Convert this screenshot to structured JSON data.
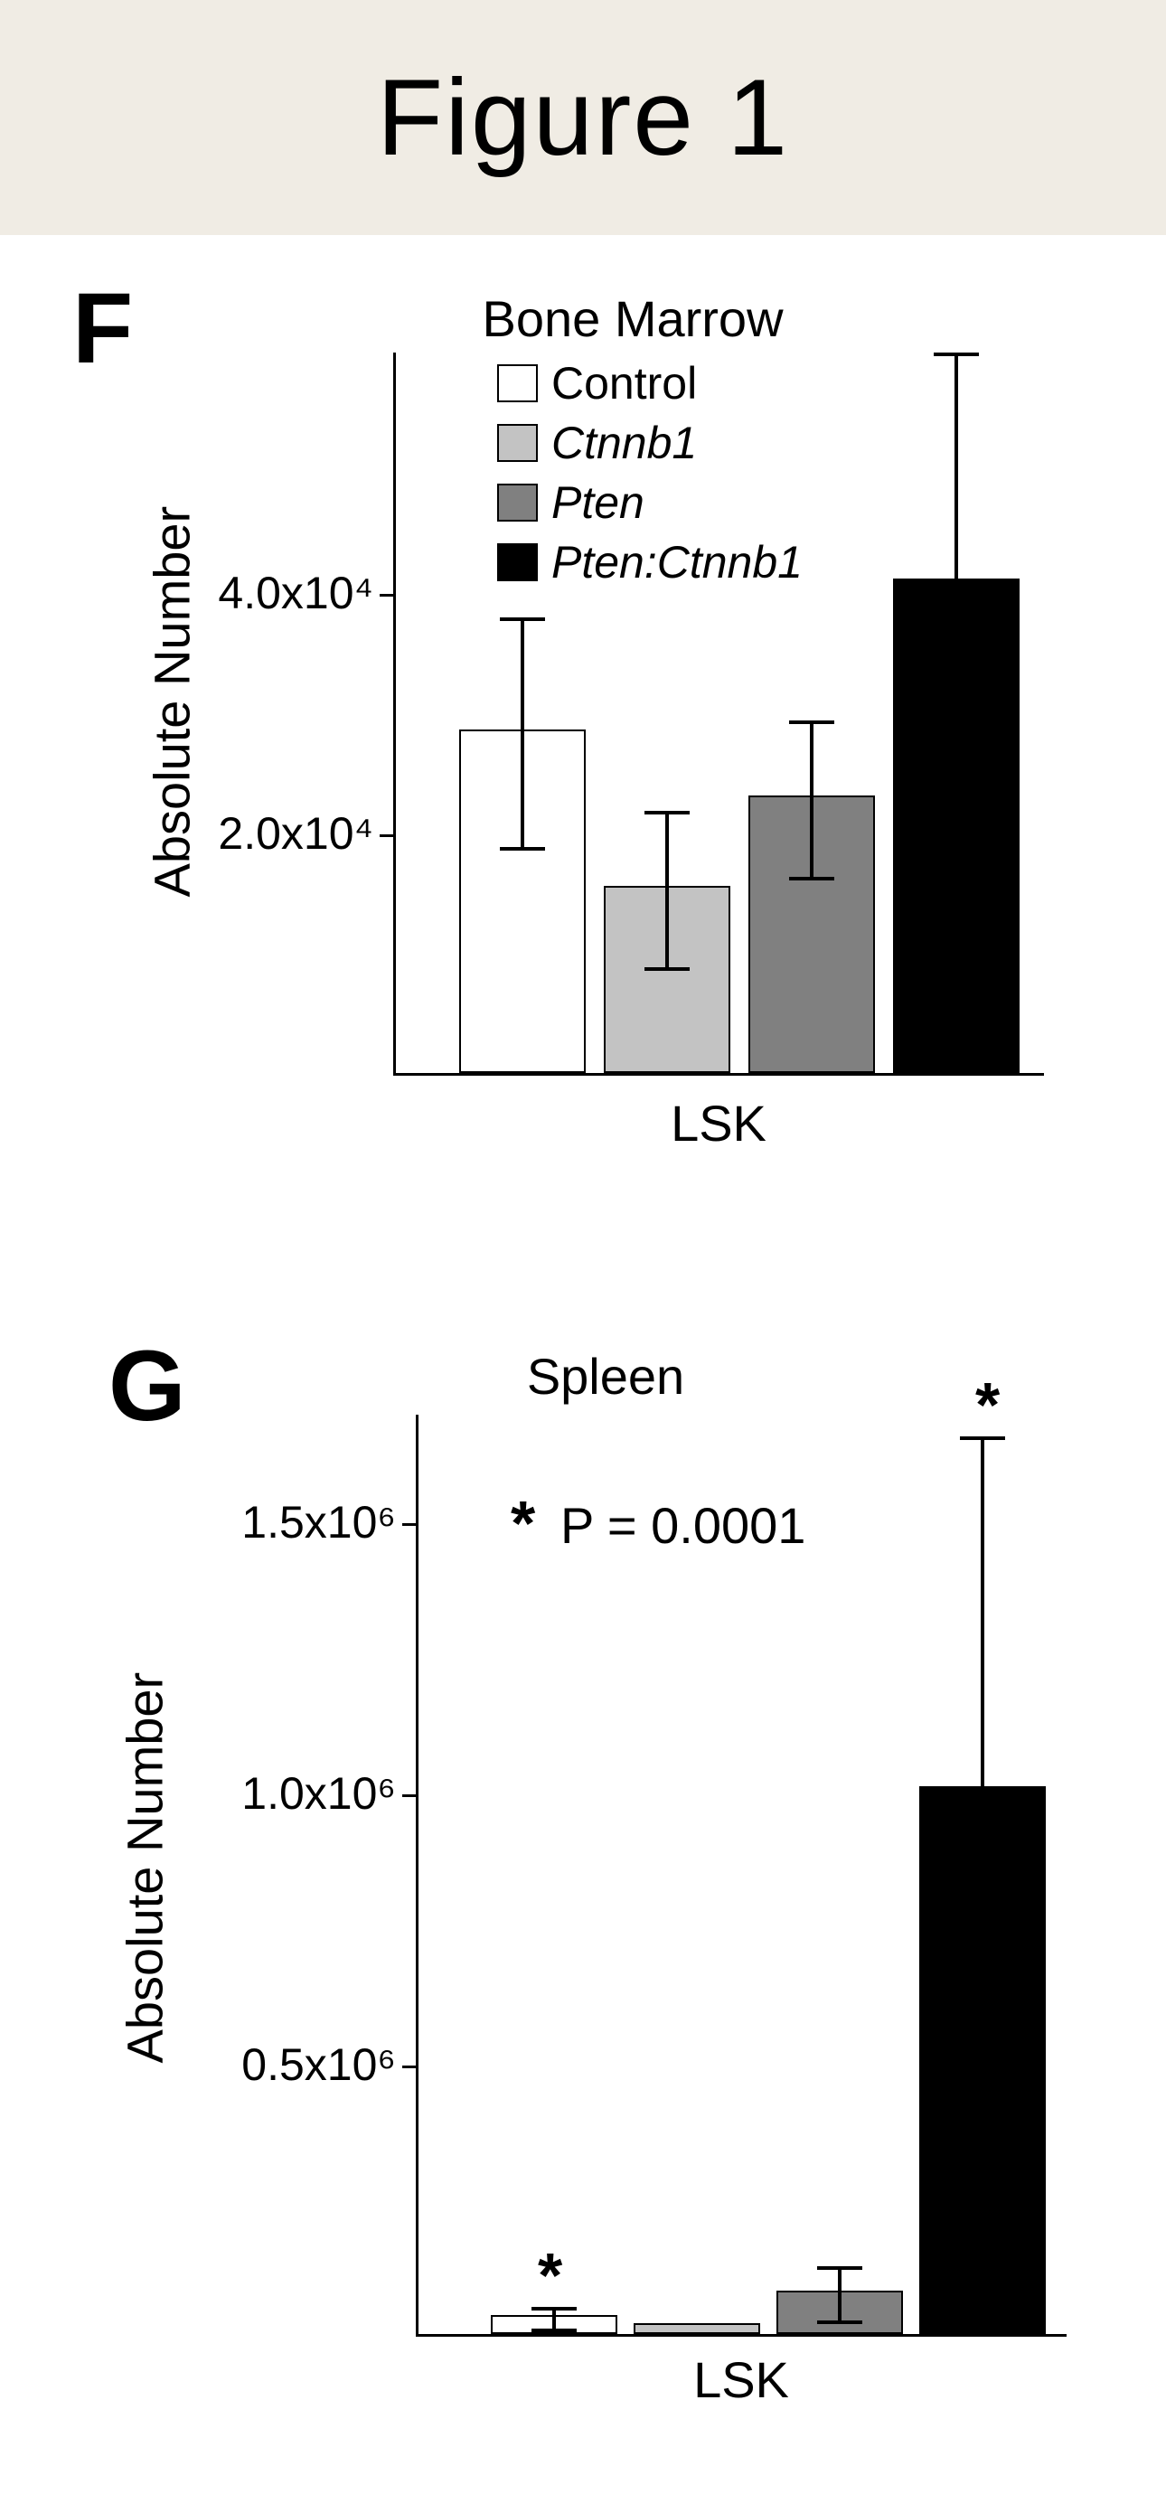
{
  "figure_title": "Figure 1",
  "panel_f": {
    "label": "F",
    "title": "Bone Marrow",
    "y_label": "Absolute Number",
    "x_label": "LSK",
    "legend": [
      {
        "label": "Control",
        "color": "#ffffff",
        "italic": false
      },
      {
        "label": "Ctnnb1",
        "color": "#c3c3c3",
        "italic": true
      },
      {
        "label": "Pten",
        "color": "#808080",
        "italic": true
      },
      {
        "label": "Pten:Ctnnb1",
        "color": "#000000",
        "italic": true
      }
    ],
    "ylim": [
      0,
      60000
    ],
    "yticks": [
      {
        "value": 20000,
        "label": "2.0x10⁴"
      },
      {
        "value": 40000,
        "label": "4.0x10⁴"
      }
    ],
    "bars": [
      {
        "value": 28500,
        "color": "#ffffff",
        "err_low": 9500,
        "err_high": 9500
      },
      {
        "value": 15500,
        "color": "#c3c3c3",
        "err_low": 6500,
        "err_high": 6500
      },
      {
        "value": 23000,
        "color": "#808080",
        "err_low": 6500,
        "err_high": 6500
      },
      {
        "value": 41000,
        "color": "#000000",
        "err_low": 0,
        "err_high": 19000
      }
    ]
  },
  "panel_g": {
    "label": "G",
    "title": "Spleen",
    "y_label": "Absolute Number",
    "x_label": "LSK",
    "pvalue_text": "P = 0.0001",
    "ylim": [
      0,
      1700000
    ],
    "yticks": [
      {
        "value": 500000,
        "label": "0.5x10⁶"
      },
      {
        "value": 1000000,
        "label": "1.0x10⁶"
      },
      {
        "value": 1500000,
        "label": "1.5x10⁶"
      }
    ],
    "bars": [
      {
        "value": 35000,
        "color": "#ffffff",
        "err_low": 20000,
        "err_high": 20000,
        "star": true
      },
      {
        "value": 20000,
        "color": "#c3c3c3",
        "err_low": 0,
        "err_high": 0,
        "star": false
      },
      {
        "value": 80000,
        "color": "#808080",
        "err_low": 50000,
        "err_high": 50000,
        "star": false
      },
      {
        "value": 1010000,
        "color": "#000000",
        "err_low": 0,
        "err_high": 650000,
        "star": true
      }
    ]
  }
}
